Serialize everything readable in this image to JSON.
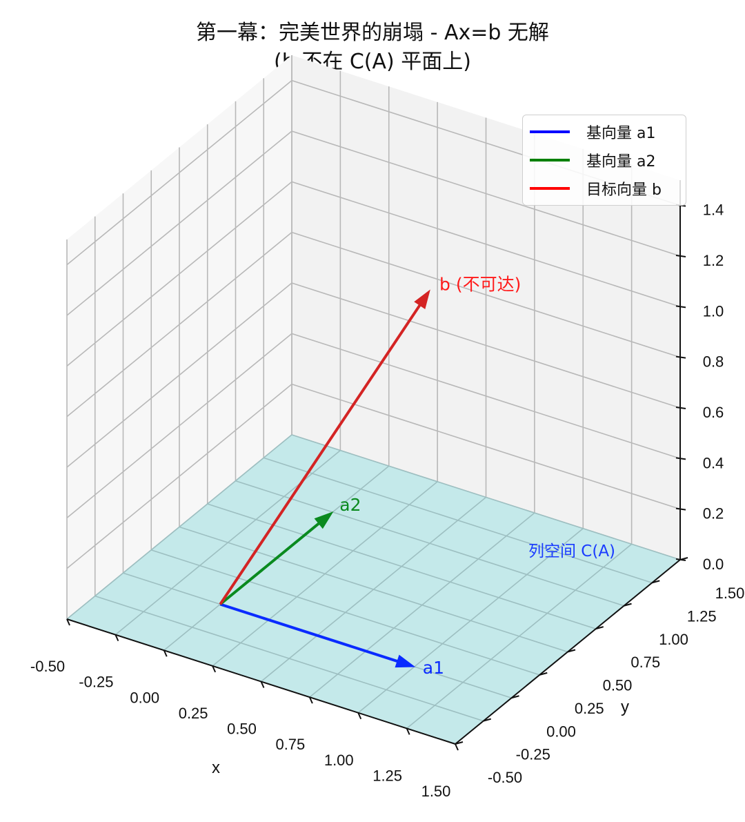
{
  "title": {
    "line1": "第一幕：完美世界的崩塌 - Ax=b 无解",
    "line2": "(b 不在 C(A) 平面上)"
  },
  "legend": {
    "items": [
      {
        "label": "基向量 a1",
        "color": "#0000ff"
      },
      {
        "label": "基向量 a2",
        "color": "#008000"
      },
      {
        "label": "目标向量 b",
        "color": "#ff0000"
      }
    ]
  },
  "colors": {
    "plane_fill": "#c4e9ea",
    "plane_grid": "#9dbfc1",
    "pane_fill": "#f2f2f2",
    "grid": "#b8b8b8",
    "a1": "#0a2bff",
    "a2": "#0a8a1f",
    "b": "#d42424"
  },
  "chart_data": {
    "type": "3d-quiver",
    "xlabel": "x",
    "ylabel": "y",
    "zlabel": "",
    "xlim": [
      -0.5,
      1.5
    ],
    "ylim": [
      -0.5,
      1.5
    ],
    "zlim": [
      0,
      1.5
    ],
    "x_ticks": [
      "-0.50",
      "-0.25",
      "0.00",
      "0.25",
      "0.50",
      "0.75",
      "1.00",
      "1.25",
      "1.50"
    ],
    "y_ticks": [
      "-0.50",
      "-0.25",
      "0.00",
      "0.25",
      "0.50",
      "0.75",
      "1.00",
      "1.25",
      "1.50"
    ],
    "z_ticks": [
      "0.0",
      "0.2",
      "0.4",
      "0.6",
      "0.8",
      "1.0",
      "1.2",
      "1.4"
    ],
    "grid": true,
    "legend_position": "upper right",
    "plane": {
      "label": "列空间 C(A)",
      "z": 0
    },
    "vectors": [
      {
        "name": "基向量 a1",
        "label": "a1",
        "origin": [
          0,
          0,
          0
        ],
        "end": [
          1,
          0,
          0
        ],
        "color": "#0000ff"
      },
      {
        "name": "基向量 a2",
        "label": "a2",
        "origin": [
          0,
          0,
          0
        ],
        "end": [
          0,
          1,
          0
        ],
        "color": "#008000"
      },
      {
        "name": "目标向量 b",
        "label": "b (不可达)",
        "origin": [
          0,
          0,
          0
        ],
        "end": [
          0.5,
          1,
          1
        ],
        "color": "#ff0000"
      }
    ]
  }
}
